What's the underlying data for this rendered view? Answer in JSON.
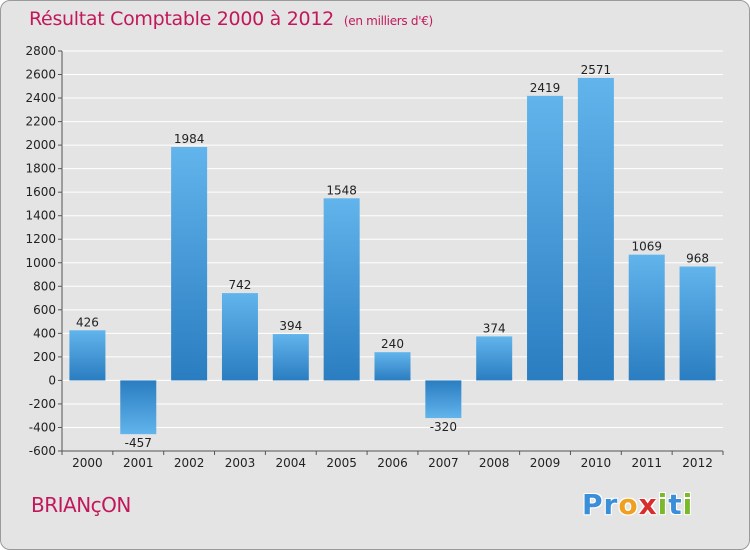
{
  "chart_data": {
    "type": "bar",
    "title": "Résultat Comptable 2000 à 2012",
    "subtitle": "(en milliers d'€)",
    "categories": [
      "2000",
      "2001",
      "2002",
      "2003",
      "2004",
      "2005",
      "2006",
      "2007",
      "2008",
      "2009",
      "2010",
      "2011",
      "2012"
    ],
    "values": [
      426,
      -457,
      1984,
      742,
      394,
      1548,
      240,
      -320,
      374,
      2419,
      2571,
      1069,
      968
    ],
    "ylim": [
      -600,
      2800
    ],
    "yticks": [
      -600,
      -400,
      -200,
      0,
      200,
      400,
      600,
      800,
      1000,
      1200,
      1400,
      1600,
      1800,
      2000,
      2200,
      2400,
      2600,
      2800
    ],
    "xlabel": "",
    "ylabel": "",
    "grid": true
  },
  "footer": {
    "city": "BRIANçON",
    "logo_letters": [
      "P",
      "r",
      "o",
      "x",
      "i",
      "t",
      "i"
    ]
  },
  "colors": {
    "bar_light": "#62b4ec",
    "bar_dark": "#2a7dc0",
    "title": "#c2185b",
    "logo": [
      "#3a8fd8",
      "#3a8fd8",
      "#f0a020",
      "#d92d2d",
      "#7ab82c",
      "#3a8fd8",
      "#7ab82c"
    ]
  }
}
